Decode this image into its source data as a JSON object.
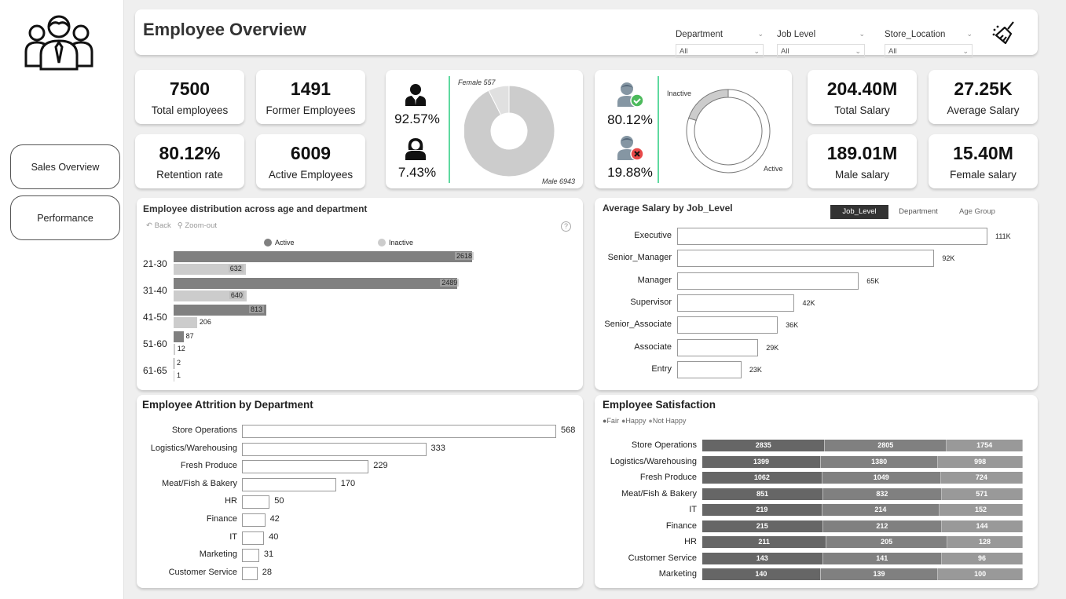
{
  "header": {
    "title": "Employee Overview"
  },
  "nav": {
    "logo_icon": "team-people-icon",
    "items": [
      {
        "label": "Sales Overview"
      },
      {
        "label": "Performance"
      }
    ]
  },
  "slicers": [
    {
      "label": "Department",
      "value": "All"
    },
    {
      "label": "Job Level",
      "value": "All"
    },
    {
      "label": "Store_Location",
      "value": "All"
    }
  ],
  "clear_filters_icon": "broom-icon",
  "kpis": {
    "total_employees": {
      "value": "7500",
      "label": "Total employees"
    },
    "former_employees": {
      "value": "1491",
      "label": "Former Employees"
    },
    "retention_rate": {
      "value": "80.12%",
      "label": "Retention rate"
    },
    "active_employees": {
      "value": "6009",
      "label": "Active Employees"
    },
    "total_salary": {
      "value": "204.40M",
      "label": "Total Salary"
    },
    "average_salary": {
      "value": "27.25K",
      "label": "Average Salary"
    },
    "male_salary": {
      "value": "189.01M",
      "label": "Male salary"
    },
    "female_salary": {
      "value": "15.40M",
      "label": "Female salary"
    }
  },
  "gender_card": {
    "male_pct": "92.57%",
    "female_pct": "7.43%",
    "female_label": "Female 557",
    "male_label": "Male 6943"
  },
  "status_card": {
    "active_pct": "80.12%",
    "inactive_pct": "19.88%",
    "inactive_label": "Inactive",
    "active_label": "Active"
  },
  "age_chart_toolbar": {
    "back": "Back",
    "zoom_out": "Zoom-out"
  },
  "chart_data": [
    {
      "type": "pie",
      "title": "Gender distribution",
      "categories": [
        "Male",
        "Female"
      ],
      "values": [
        6943,
        557
      ],
      "donut": true
    },
    {
      "type": "pie",
      "title": "Employee status",
      "categories": [
        "Active",
        "Inactive"
      ],
      "values": [
        6009,
        1491
      ],
      "donut": true
    },
    {
      "type": "bar",
      "orientation": "horizontal",
      "title": "Employee distribution across age and department",
      "categories": [
        "21-30",
        "31-40",
        "41-50",
        "51-60",
        "61-65"
      ],
      "series": [
        {
          "name": "Active",
          "color": "#808080",
          "values": [
            2618,
            2489,
            813,
            87,
            2
          ]
        },
        {
          "name": "Inactive",
          "color": "#cccccc",
          "values": [
            632,
            640,
            206,
            12,
            1
          ]
        }
      ],
      "legend": "top"
    },
    {
      "type": "bar",
      "orientation": "horizontal",
      "title": "Average Salary by Job_Level",
      "tabs": [
        "Job_Level",
        "Department",
        "Age Group"
      ],
      "active_tab": "Job_Level",
      "categories": [
        "Executive",
        "Senior_Manager",
        "Manager",
        "Supervisor",
        "Senior_Associate",
        "Associate",
        "Entry"
      ],
      "values": [
        111,
        92,
        65,
        42,
        36,
        29,
        23
      ],
      "value_labels": [
        "111K",
        "92K",
        "65K",
        "42K",
        "36K",
        "29K",
        "23K"
      ],
      "unit": "K"
    },
    {
      "type": "bar",
      "orientation": "horizontal",
      "title": "Employee Attrition by Department",
      "categories": [
        "Store Operations",
        "Logistics/Warehousing",
        "Fresh Produce",
        "Meat/Fish & Bakery",
        "HR",
        "Finance",
        "IT",
        "Marketing",
        "Customer Service"
      ],
      "values": [
        568,
        333,
        229,
        170,
        50,
        42,
        40,
        31,
        28
      ]
    },
    {
      "type": "bar",
      "orientation": "horizontal",
      "stacked": "100%",
      "title": "Employee Satisfaction",
      "categories": [
        "Store Operations",
        "Logistics/Warehousing",
        "Fresh Produce",
        "Meat/Fish & Bakery",
        "IT",
        "Finance",
        "HR",
        "Customer Service",
        "Marketing"
      ],
      "series": [
        {
          "name": "Fair",
          "color": "#666666",
          "values": [
            2835,
            1399,
            1062,
            851,
            219,
            215,
            211,
            143,
            140
          ]
        },
        {
          "name": "Happy",
          "color": "#808080",
          "values": [
            2805,
            1380,
            1049,
            832,
            214,
            212,
            205,
            141,
            139
          ]
        },
        {
          "name": "Not Happy",
          "color": "#999999",
          "values": [
            1754,
            998,
            724,
            571,
            152,
            144,
            128,
            96,
            100
          ]
        }
      ],
      "legend": "top-left"
    }
  ]
}
